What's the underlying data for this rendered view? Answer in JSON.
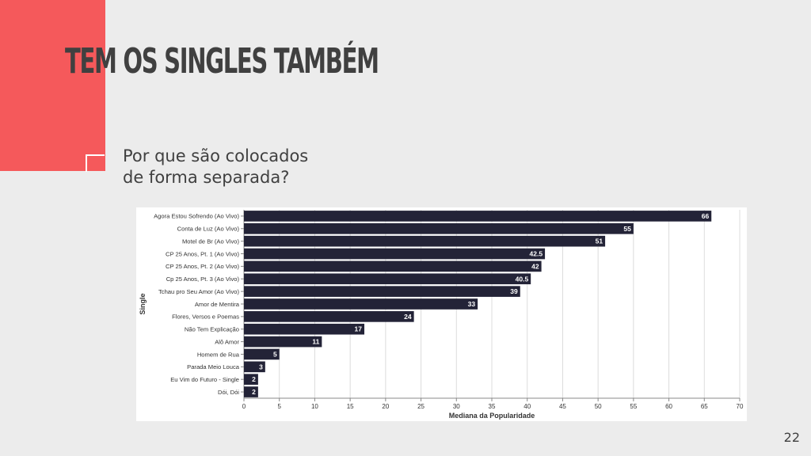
{
  "slide": {
    "title": "TEM OS SINGLES TAMBÉM",
    "subtitle_line1": "Por que são colocados",
    "subtitle_line2": "de forma separada?",
    "page_number": "22"
  },
  "colors": {
    "accent": "#f5595b",
    "bar": "#232337",
    "text": "#404040"
  },
  "chart_data": {
    "type": "bar",
    "orientation": "horizontal",
    "xlabel": "Mediana da Popularidade",
    "ylabel": "Single",
    "xlim": [
      0,
      70
    ],
    "xticks": [
      0,
      5,
      10,
      15,
      20,
      25,
      30,
      35,
      40,
      45,
      50,
      55,
      60,
      65,
      70
    ],
    "grid": true,
    "categories": [
      "Agora Estou Sofrendo (Ao Vivo)",
      "Conta de Luz (Ao Vivo)",
      "Motel de Br (Ao Vivo)",
      "CP 25 Anos, Pt. 1 (Ao Vivo)",
      "CP 25 Anos, Pt. 2 (Ao Vivo)",
      "Cp 25 Anos, Pt. 3 (Ao Vivo)",
      "Tchau pro Seu Amor (Ao Vivo)",
      "Amor de Mentira",
      "Flores, Versos e Poemas",
      "Não Tem Explicação",
      "Alô Amor",
      "Homem de Rua",
      "Parada Meio Louca",
      "Eu Vim do Futuro - Single",
      "Dói, Dói"
    ],
    "values": [
      66,
      55,
      51,
      42.5,
      42,
      40.5,
      39,
      33,
      24,
      17,
      11,
      5,
      3,
      2,
      2
    ]
  }
}
